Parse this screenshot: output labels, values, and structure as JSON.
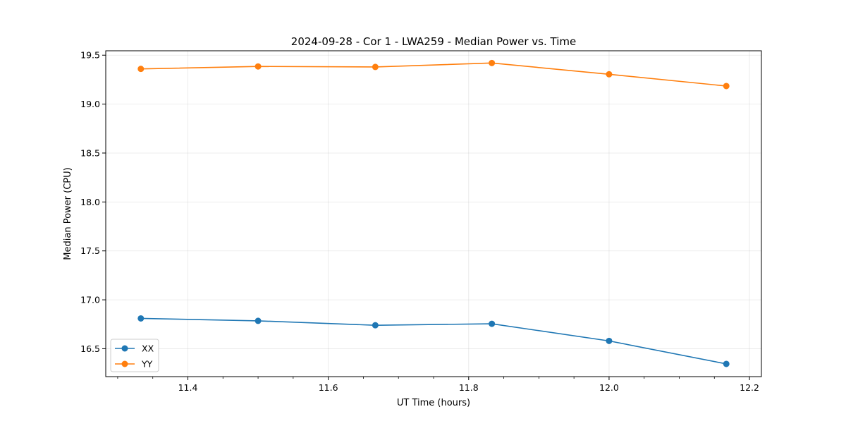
{
  "chart_data": {
    "type": "line",
    "title": "2024-09-28 - Cor 1 - LWA259 - Median Power vs. Time",
    "xlabel": "UT Time (hours)",
    "ylabel": "Median Power (CPU)",
    "xlim": [
      11.283,
      12.217
    ],
    "ylim": [
      16.215,
      19.545
    ],
    "grid": true,
    "legend_position": "bottom-left",
    "x_ticks": [
      11.4,
      11.6,
      11.8,
      12.0,
      12.2
    ],
    "x_tick_labels": [
      "11.4",
      "11.6",
      "11.8",
      "12.0",
      "12.2"
    ],
    "x_minor_ticks": [
      11.3,
      11.35,
      11.45,
      11.5,
      11.55,
      11.65,
      11.7,
      11.75,
      11.85,
      11.9,
      11.95,
      12.05,
      12.1,
      12.15
    ],
    "y_ticks": [
      16.5,
      17.0,
      17.5,
      18.0,
      18.5,
      19.0,
      19.5
    ],
    "y_tick_labels": [
      "16.5",
      "17.0",
      "17.5",
      "18.0",
      "18.5",
      "19.0",
      "19.5"
    ],
    "x": [
      11.333,
      11.5,
      11.667,
      11.833,
      12.0,
      12.167
    ],
    "series": [
      {
        "name": "XX",
        "color": "#1f77b4",
        "values": [
          16.81,
          16.785,
          16.74,
          16.755,
          16.58,
          16.345
        ]
      },
      {
        "name": "YY",
        "color": "#ff7f0e",
        "values": [
          19.36,
          19.385,
          19.38,
          19.42,
          19.305,
          19.185
        ]
      }
    ]
  }
}
